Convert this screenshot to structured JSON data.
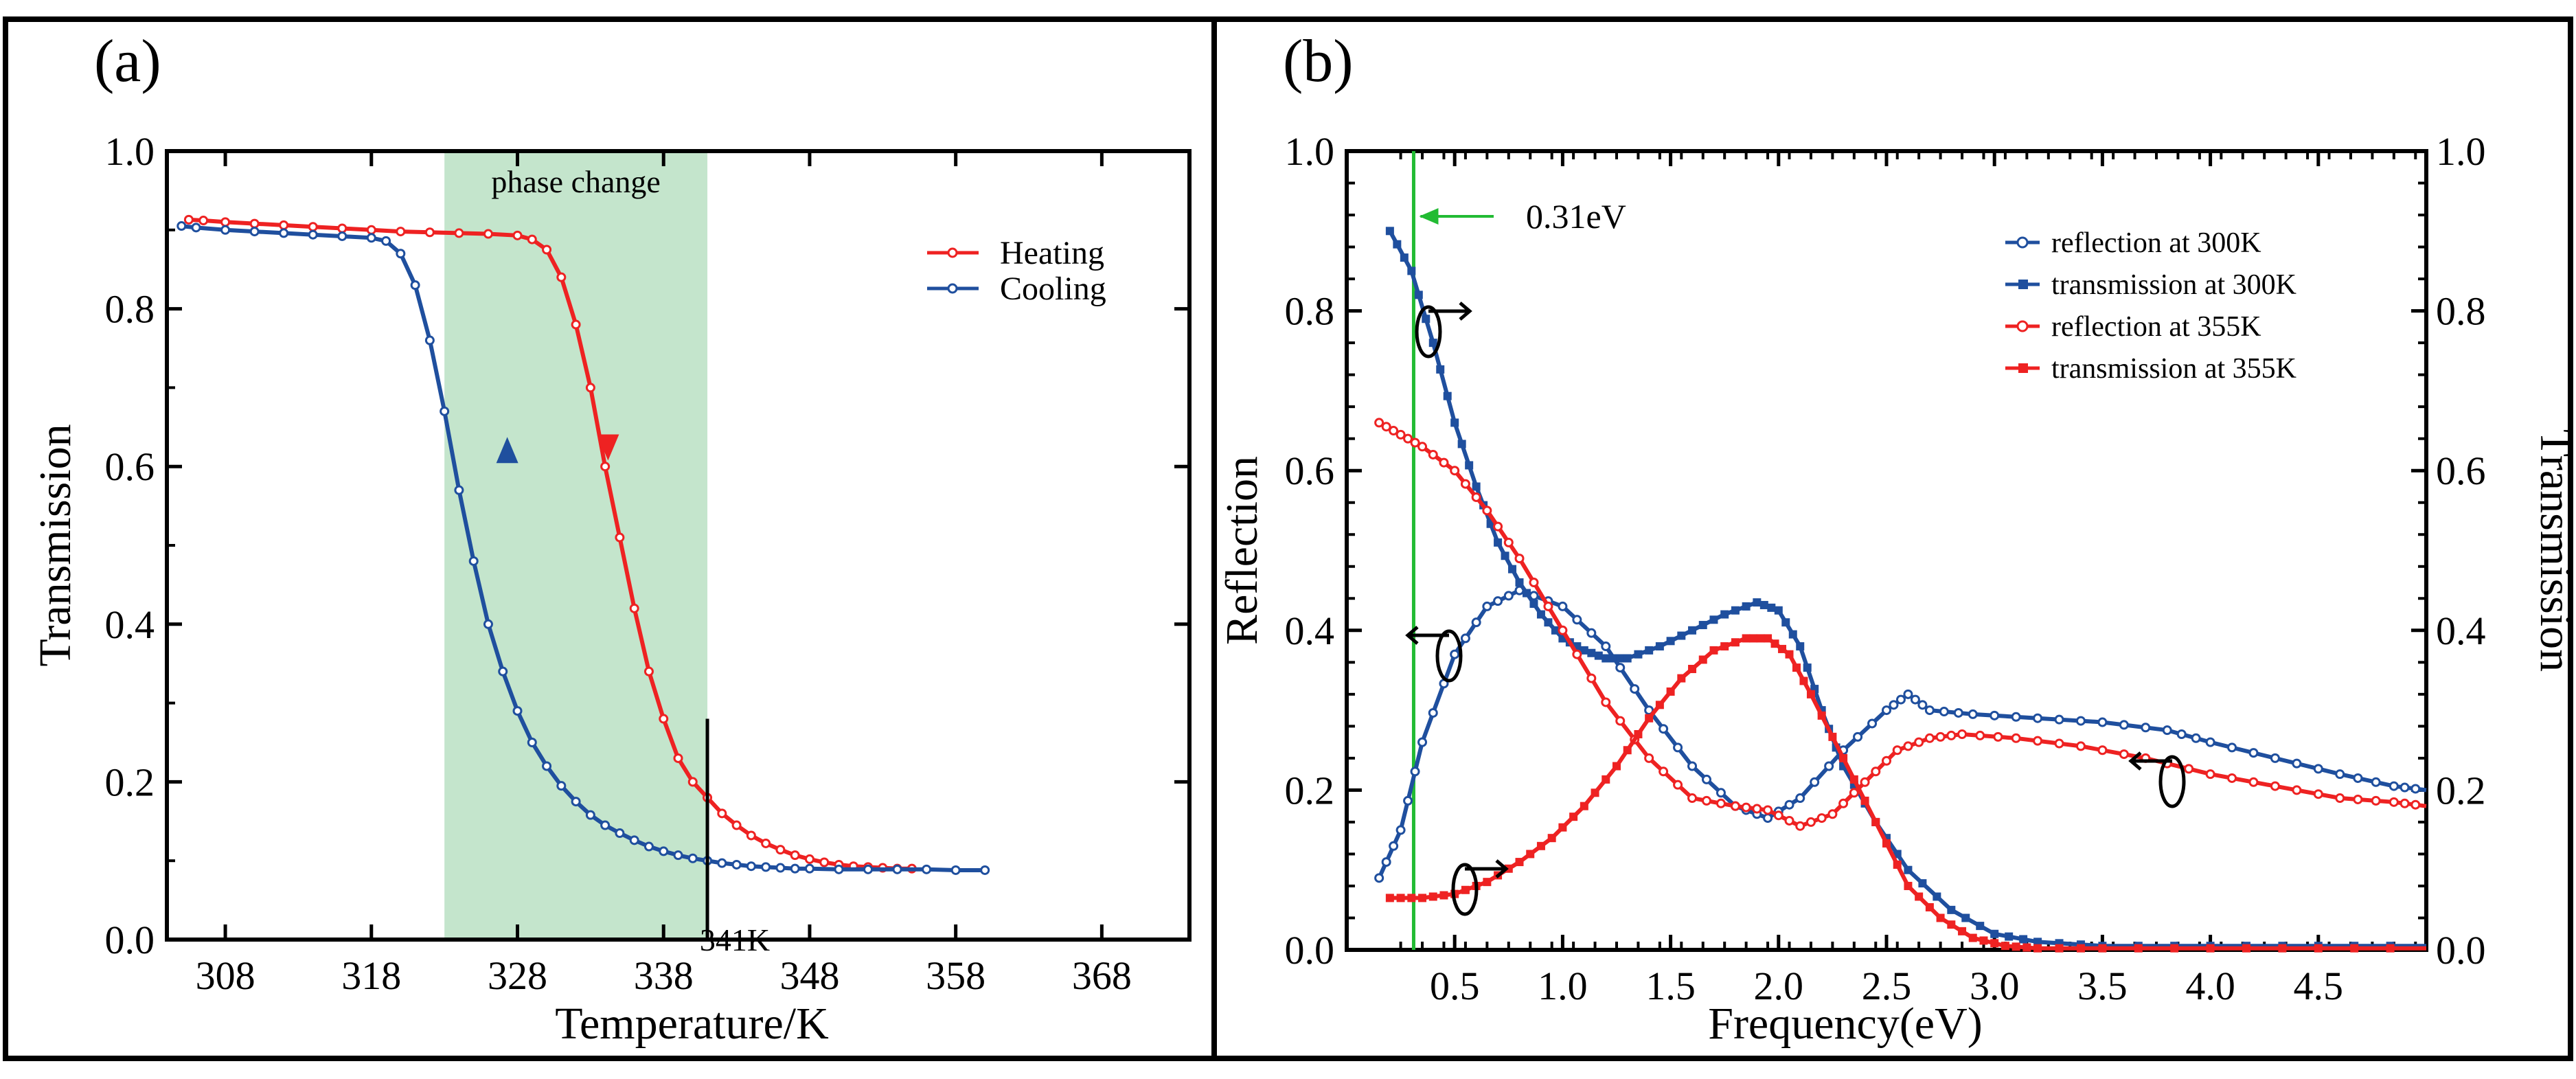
{
  "chart_data": [
    {
      "panel": "(a)",
      "type": "line",
      "xlabel": "Temperature/K",
      "ylabel": "Transmission",
      "xlim": [
        304,
        374
      ],
      "ylim": [
        0,
        1
      ],
      "xticks": [
        "308",
        "318",
        "328",
        "338",
        "348",
        "358",
        "368"
      ],
      "yticks": [
        "0.0",
        "0.2",
        "0.4",
        "0.6",
        "0.8",
        "1.0"
      ],
      "shaded_region": {
        "label": "phase change",
        "x0": 323.0,
        "x1": 341.0,
        "color": "#c4e5cc"
      },
      "marker_line": {
        "label": "341K",
        "x": 341.0,
        "y0": 0.0,
        "y1": 0.28
      },
      "legend_position": "top-right",
      "series": [
        {
          "name": "Heating",
          "color": "#ee2222",
          "arrow": "down",
          "x": [
            305.5,
            306.5,
            308,
            310,
            312,
            314,
            316,
            318,
            320,
            322,
            324,
            326,
            328,
            329,
            330,
            331,
            332,
            333,
            334,
            335,
            336,
            337,
            338,
            339,
            340,
            341,
            342,
            343,
            344,
            345,
            346,
            347,
            348,
            349,
            350,
            351,
            352,
            353,
            354,
            355
          ],
          "y": [
            0.913,
            0.912,
            0.91,
            0.908,
            0.906,
            0.904,
            0.902,
            0.9,
            0.898,
            0.897,
            0.896,
            0.895,
            0.893,
            0.888,
            0.875,
            0.84,
            0.78,
            0.7,
            0.6,
            0.51,
            0.42,
            0.34,
            0.28,
            0.23,
            0.2,
            0.18,
            0.16,
            0.145,
            0.132,
            0.122,
            0.114,
            0.107,
            0.102,
            0.098,
            0.095,
            0.093,
            0.092,
            0.091,
            0.09,
            0.09
          ]
        },
        {
          "name": "Cooling",
          "color": "#1f4f9e",
          "arrow": "up",
          "x": [
            305,
            306,
            308,
            310,
            312,
            314,
            316,
            318,
            319,
            320,
            321,
            322,
            323,
            324,
            325,
            326,
            327,
            328,
            329,
            330,
            331,
            332,
            333,
            334,
            335,
            336,
            337,
            338,
            339,
            340,
            341,
            342,
            343,
            344,
            345,
            346,
            347,
            348,
            350,
            352,
            354,
            356,
            358,
            360
          ],
          "y": [
            0.905,
            0.903,
            0.9,
            0.898,
            0.896,
            0.894,
            0.892,
            0.89,
            0.886,
            0.87,
            0.83,
            0.76,
            0.67,
            0.57,
            0.48,
            0.4,
            0.34,
            0.29,
            0.25,
            0.22,
            0.195,
            0.175,
            0.158,
            0.145,
            0.135,
            0.126,
            0.118,
            0.112,
            0.107,
            0.103,
            0.1,
            0.097,
            0.095,
            0.093,
            0.092,
            0.091,
            0.09,
            0.09,
            0.089,
            0.089,
            0.089,
            0.089,
            0.088,
            0.088
          ]
        }
      ]
    },
    {
      "panel": "(b)",
      "type": "line",
      "xlabel": "Frequency(eV)",
      "ylabel": "Reflection",
      "y2label": "Transmission",
      "xlim": [
        0.0,
        5.0
      ],
      "ylim": [
        0,
        1
      ],
      "y2lim": [
        0,
        1
      ],
      "xticks": [
        "0.5",
        "1.0",
        "1.5",
        "2.0",
        "2.5",
        "3.0",
        "3.5",
        "4.0",
        "4.5"
      ],
      "yticks": [
        "0.0",
        "0.2",
        "0.4",
        "0.6",
        "0.8",
        "1.0"
      ],
      "y2ticks": [
        "0.0",
        "0.2",
        "0.4",
        "0.6",
        "0.8",
        "1.0"
      ],
      "annotation": {
        "text": "0.31eV",
        "x": 0.31,
        "color": "#22bb33"
      },
      "legend_position": "top-right",
      "series": [
        {
          "name": "reflection at 300K",
          "color": "#1f4f9e",
          "marker": "open-circle",
          "axis": "left",
          "x": [
            0.15,
            0.25,
            0.35,
            0.5,
            0.65,
            0.8,
            1.0,
            1.2,
            1.4,
            1.6,
            1.8,
            1.95,
            2.1,
            2.3,
            2.5,
            2.6,
            2.7,
            2.9,
            3.2,
            3.5,
            3.8,
            4.0,
            4.3,
            4.6,
            4.85,
            5.0
          ],
          "y": [
            0.09,
            0.15,
            0.26,
            0.37,
            0.43,
            0.45,
            0.43,
            0.38,
            0.3,
            0.23,
            0.18,
            0.165,
            0.19,
            0.25,
            0.3,
            0.32,
            0.3,
            0.295,
            0.29,
            0.285,
            0.275,
            0.26,
            0.24,
            0.22,
            0.205,
            0.2
          ]
        },
        {
          "name": "transmission at 300K",
          "color": "#1f4f9e",
          "marker": "filled-square",
          "axis": "right",
          "x": [
            0.2,
            0.3,
            0.4,
            0.5,
            0.6,
            0.7,
            0.8,
            0.9,
            1.0,
            1.1,
            1.2,
            1.3,
            1.45,
            1.6,
            1.75,
            1.9,
            2.0,
            2.1,
            2.2,
            2.3,
            2.45,
            2.6,
            2.8,
            3.0,
            3.2,
            3.5,
            4.0,
            4.5,
            5.0
          ],
          "y": [
            0.9,
            0.85,
            0.76,
            0.66,
            0.58,
            0.51,
            0.46,
            0.42,
            0.39,
            0.375,
            0.365,
            0.365,
            0.38,
            0.4,
            0.42,
            0.435,
            0.425,
            0.38,
            0.3,
            0.23,
            0.16,
            0.1,
            0.05,
            0.02,
            0.01,
            0.005,
            0.005,
            0.005,
            0.005
          ]
        },
        {
          "name": "reflection at 355K",
          "color": "#ee2222",
          "marker": "open-circle",
          "axis": "left",
          "x": [
            0.15,
            0.25,
            0.35,
            0.5,
            0.65,
            0.8,
            1.0,
            1.2,
            1.4,
            1.6,
            1.8,
            1.95,
            2.1,
            2.25,
            2.4,
            2.55,
            2.7,
            2.85,
            3.1,
            3.4,
            3.7,
            4.0,
            4.3,
            4.6,
            4.85,
            5.0
          ],
          "y": [
            0.66,
            0.645,
            0.63,
            0.6,
            0.55,
            0.49,
            0.4,
            0.31,
            0.24,
            0.19,
            0.18,
            0.175,
            0.155,
            0.17,
            0.21,
            0.25,
            0.265,
            0.27,
            0.265,
            0.255,
            0.24,
            0.22,
            0.205,
            0.19,
            0.185,
            0.18
          ]
        },
        {
          "name": "transmission at 355K",
          "color": "#ee2222",
          "marker": "filled-square",
          "axis": "right",
          "x": [
            0.2,
            0.35,
            0.5,
            0.65,
            0.8,
            0.95,
            1.1,
            1.25,
            1.4,
            1.55,
            1.7,
            1.85,
            1.95,
            2.05,
            2.15,
            2.3,
            2.45,
            2.6,
            2.75,
            2.9,
            3.05,
            3.2,
            3.5,
            4.0,
            4.5,
            5.0
          ],
          "y": [
            0.065,
            0.065,
            0.07,
            0.085,
            0.11,
            0.14,
            0.18,
            0.23,
            0.29,
            0.34,
            0.375,
            0.39,
            0.39,
            0.37,
            0.32,
            0.24,
            0.16,
            0.08,
            0.04,
            0.015,
            0.005,
            0.002,
            0.002,
            0.002,
            0.002,
            0.002
          ]
        }
      ]
    }
  ]
}
